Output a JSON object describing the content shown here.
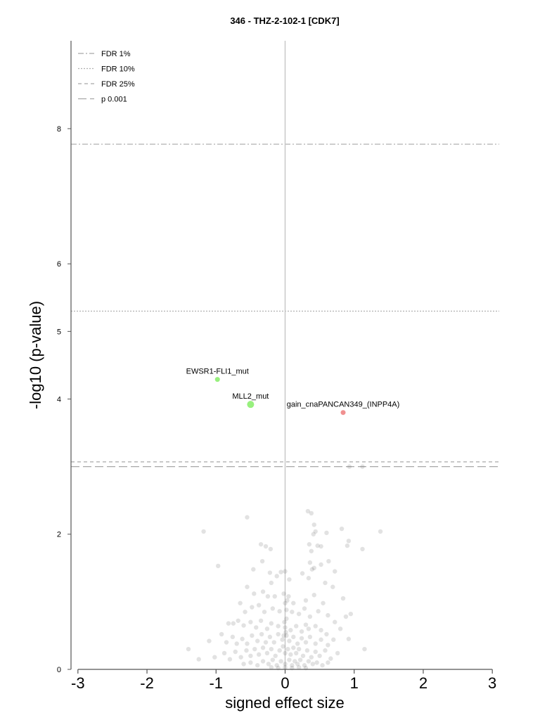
{
  "chart_data": {
    "type": "scatter",
    "title": "346 - THZ-2-102-1 [CDK7]",
    "xlabel": "signed effect size",
    "ylabel": "-log10 (p-value)",
    "xlim": [
      -3.1,
      3.1
    ],
    "ylim": [
      0,
      9.3
    ],
    "xticks": [
      -3,
      -2,
      -1,
      0,
      1,
      2,
      3
    ],
    "yticks": [
      0,
      2,
      4,
      5,
      6,
      8
    ],
    "grid": false,
    "legend_position": "top-left",
    "thresholds": [
      {
        "name": "FDR 1%",
        "y": 7.77,
        "style": "dashdot",
        "color": "#a8a8a8"
      },
      {
        "name": "FDR 10%",
        "y": 5.3,
        "style": "dotted",
        "color": "#b0b0b0"
      },
      {
        "name": "FDR 25%",
        "y": 3.07,
        "style": "dashed-short",
        "color": "#a8a8a8"
      },
      {
        "name": "p 0.001",
        "y": 3.0,
        "style": "dashed-long",
        "color": "#a8a8a8"
      }
    ],
    "highlighted": [
      {
        "label": "EWSR1-FLI1_mut",
        "x": -0.98,
        "y": 4.29,
        "color": "#98f07e",
        "size": 3.5
      },
      {
        "label": "MLL2_mut",
        "x": -0.5,
        "y": 3.92,
        "color": "#98f07e",
        "size": 5
      },
      {
        "label": "gain_cnaPANCAN349_(INPP4A)",
        "x": 0.84,
        "y": 3.8,
        "color": "#f09090",
        "size": 3.5
      }
    ],
    "background_points": [
      [
        -1.18,
        2.04
      ],
      [
        -0.97,
        1.53
      ],
      [
        -0.55,
        2.25
      ],
      [
        0.33,
        2.34
      ],
      [
        0.38,
        2.31
      ],
      [
        0.42,
        2.14
      ],
      [
        0.44,
        2.04
      ],
      [
        0.41,
        2.0
      ],
      [
        0.6,
        2.02
      ],
      [
        0.82,
        2.08
      ],
      [
        1.38,
        2.04
      ],
      [
        0.92,
        1.9
      ],
      [
        1.12,
        1.78
      ],
      [
        0.9,
        1.83
      ],
      [
        -0.35,
        1.85
      ],
      [
        -0.28,
        1.82
      ],
      [
        -0.21,
        1.78
      ],
      [
        0.35,
        1.85
      ],
      [
        0.38,
        1.75
      ],
      [
        0.47,
        1.83
      ],
      [
        0.52,
        1.82
      ],
      [
        0.36,
        1.58
      ],
      [
        0.39,
        1.48
      ],
      [
        0.42,
        1.5
      ],
      [
        0.52,
        1.55
      ],
      [
        0.63,
        1.6
      ],
      [
        0.72,
        1.45
      ],
      [
        -0.46,
        1.48
      ],
      [
        -0.33,
        1.6
      ],
      [
        -0.22,
        1.43
      ],
      [
        -0.2,
        1.28
      ],
      [
        -0.12,
        1.38
      ],
      [
        -0.06,
        1.44
      ],
      [
        0.0,
        1.45
      ],
      [
        0.06,
        1.33
      ],
      [
        0.25,
        1.42
      ],
      [
        0.34,
        1.35
      ],
      [
        0.58,
        1.28
      ],
      [
        0.69,
        1.22
      ],
      [
        -0.55,
        1.22
      ],
      [
        -0.45,
        1.12
      ],
      [
        -0.32,
        1.15
      ],
      [
        -0.25,
        1.08
      ],
      [
        -0.15,
        1.08
      ],
      [
        -0.02,
        1.12
      ],
      [
        0.05,
        1.08
      ],
      [
        0.12,
        0.98
      ],
      [
        0.3,
        1.02
      ],
      [
        0.42,
        1.1
      ],
      [
        0.55,
        0.98
      ],
      [
        0.84,
        1.05
      ],
      [
        0.95,
        0.82
      ],
      [
        -0.65,
        0.98
      ],
      [
        -0.58,
        0.85
      ],
      [
        -0.48,
        0.92
      ],
      [
        -0.38,
        0.95
      ],
      [
        -0.3,
        0.85
      ],
      [
        -0.18,
        0.9
      ],
      [
        -0.08,
        0.86
      ],
      [
        0.02,
        0.88
      ],
      [
        0.1,
        0.85
      ],
      [
        0.2,
        0.82
      ],
      [
        0.28,
        0.9
      ],
      [
        0.36,
        0.78
      ],
      [
        0.48,
        0.86
      ],
      [
        0.62,
        0.8
      ],
      [
        0.72,
        0.7
      ],
      [
        0.88,
        0.78
      ],
      [
        -0.82,
        0.68
      ],
      [
        -0.75,
        0.68
      ],
      [
        -0.68,
        0.72
      ],
      [
        -0.6,
        0.65
      ],
      [
        -0.5,
        0.7
      ],
      [
        -0.42,
        0.62
      ],
      [
        -0.35,
        0.72
      ],
      [
        -0.26,
        0.6
      ],
      [
        -0.2,
        0.68
      ],
      [
        -0.1,
        0.64
      ],
      [
        0.0,
        0.62
      ],
      [
        0.08,
        0.58
      ],
      [
        0.16,
        0.64
      ],
      [
        0.24,
        0.56
      ],
      [
        0.3,
        0.66
      ],
      [
        0.34,
        0.6
      ],
      [
        0.44,
        0.64
      ],
      [
        0.52,
        0.58
      ],
      [
        0.6,
        0.52
      ],
      [
        0.8,
        0.6
      ],
      [
        -1.1,
        0.42
      ],
      [
        -0.92,
        0.52
      ],
      [
        -0.85,
        0.4
      ],
      [
        -0.76,
        0.48
      ],
      [
        -0.7,
        0.38
      ],
      [
        -0.62,
        0.45
      ],
      [
        -0.55,
        0.38
      ],
      [
        -0.48,
        0.5
      ],
      [
        -0.4,
        0.42
      ],
      [
        -0.34,
        0.52
      ],
      [
        -0.28,
        0.4
      ],
      [
        -0.22,
        0.48
      ],
      [
        -0.16,
        0.4
      ],
      [
        -0.1,
        0.52
      ],
      [
        -0.04,
        0.44
      ],
      [
        0.02,
        0.5
      ],
      [
        0.06,
        0.42
      ],
      [
        0.12,
        0.48
      ],
      [
        0.18,
        0.38
      ],
      [
        0.24,
        0.46
      ],
      [
        0.3,
        0.4
      ],
      [
        0.36,
        0.48
      ],
      [
        0.44,
        0.38
      ],
      [
        0.52,
        0.44
      ],
      [
        0.62,
        0.36
      ],
      [
        0.7,
        0.44
      ],
      [
        -1.02,
        0.18
      ],
      [
        -0.88,
        0.24
      ],
      [
        -0.8,
        0.15
      ],
      [
        -0.72,
        0.26
      ],
      [
        -0.64,
        0.18
      ],
      [
        -0.56,
        0.28
      ],
      [
        -0.5,
        0.2
      ],
      [
        -0.44,
        0.3
      ],
      [
        -0.38,
        0.22
      ],
      [
        -0.32,
        0.32
      ],
      [
        -0.26,
        0.24
      ],
      [
        -0.2,
        0.3
      ],
      [
        -0.14,
        0.2
      ],
      [
        -0.08,
        0.28
      ],
      [
        -0.03,
        0.34
      ],
      [
        0.0,
        0.24
      ],
      [
        0.04,
        0.3
      ],
      [
        0.08,
        0.22
      ],
      [
        0.12,
        0.32
      ],
      [
        0.16,
        0.24
      ],
      [
        0.2,
        0.3
      ],
      [
        0.26,
        0.2
      ],
      [
        0.32,
        0.28
      ],
      [
        0.38,
        0.18
      ],
      [
        0.44,
        0.26
      ],
      [
        0.5,
        0.2
      ],
      [
        0.58,
        0.28
      ],
      [
        0.66,
        0.16
      ],
      [
        0.76,
        0.24
      ],
      [
        -0.6,
        0.08
      ],
      [
        -0.5,
        0.1
      ],
      [
        -0.4,
        0.06
      ],
      [
        -0.32,
        0.12
      ],
      [
        -0.24,
        0.08
      ],
      [
        -0.18,
        0.14
      ],
      [
        -0.12,
        0.06
      ],
      [
        -0.06,
        0.12
      ],
      [
        0.0,
        0.08
      ],
      [
        0.06,
        0.14
      ],
      [
        0.1,
        0.06
      ],
      [
        0.14,
        0.12
      ],
      [
        0.18,
        0.08
      ],
      [
        0.22,
        0.14
      ],
      [
        0.28,
        0.06
      ],
      [
        0.34,
        0.12
      ],
      [
        0.4,
        0.08
      ],
      [
        0.46,
        0.1
      ],
      [
        0.54,
        0.06
      ],
      [
        0.62,
        0.1
      ],
      [
        -0.1,
        0.02
      ],
      [
        0.0,
        0.03
      ],
      [
        0.1,
        0.02
      ],
      [
        0.2,
        0.03
      ],
      [
        0.3,
        0.02
      ],
      [
        -0.2,
        0.03
      ],
      [
        -0.02,
        0.5
      ],
      [
        0.01,
        0.55
      ],
      [
        -0.01,
        0.7
      ],
      [
        0.02,
        0.75
      ],
      [
        0.0,
        0.98
      ],
      [
        0.03,
        1.02
      ],
      [
        0.93,
        3.0
      ],
      [
        1.12,
        3.0
      ],
      [
        -1.4,
        0.3
      ],
      [
        -1.25,
        0.15
      ],
      [
        1.15,
        0.3
      ],
      [
        0.92,
        0.45
      ]
    ]
  }
}
